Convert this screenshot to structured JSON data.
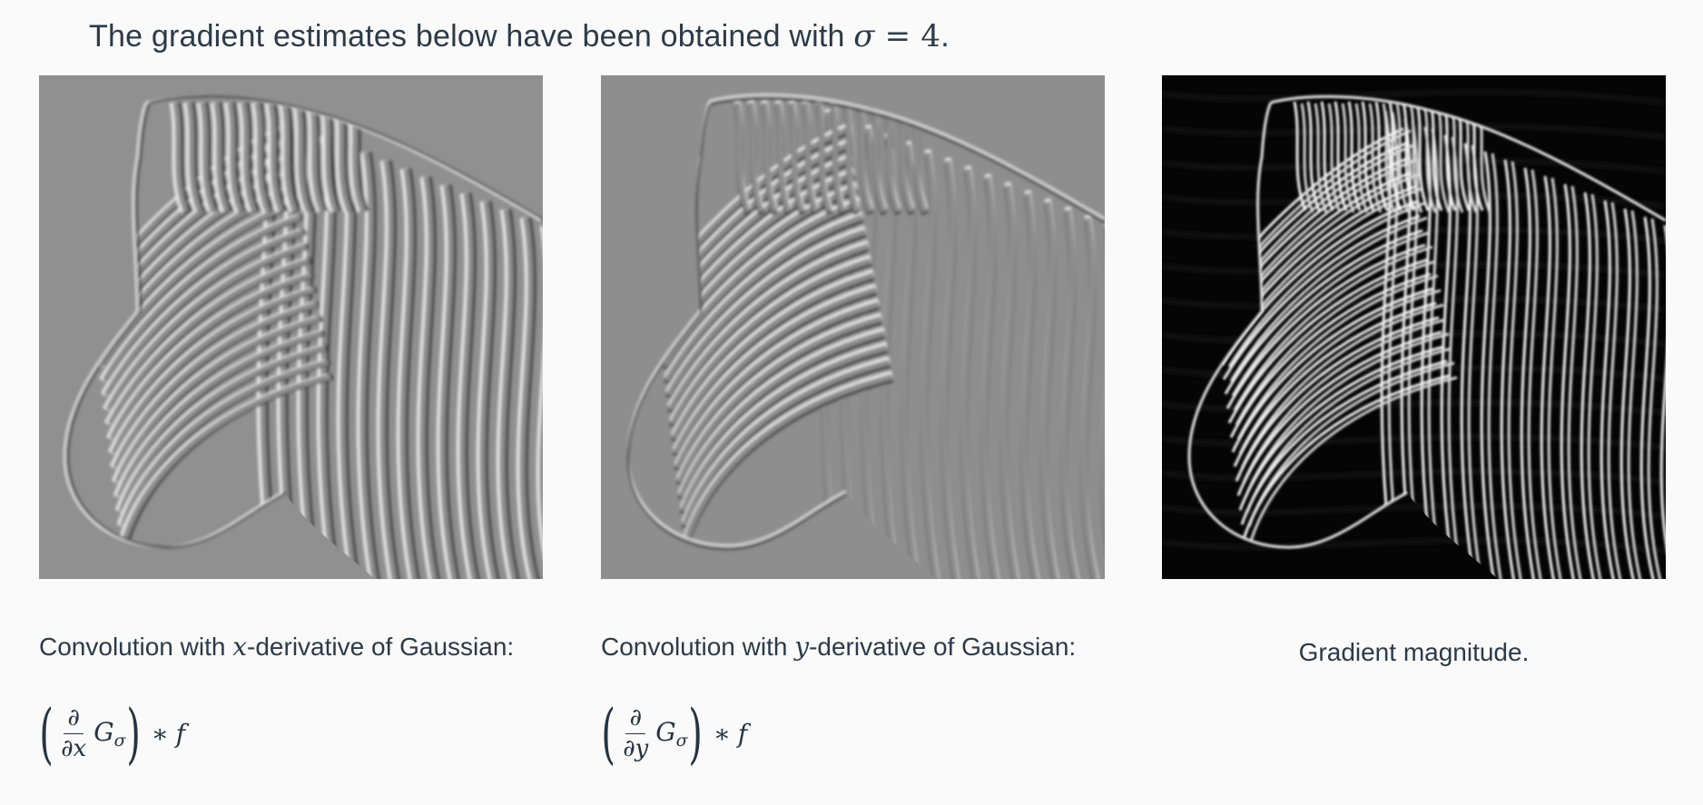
{
  "intro": {
    "prefix": "The gradient estimates below have been obtained with ",
    "sigma_symbol": "σ",
    "equals": " = ",
    "value": "4",
    "suffix": "."
  },
  "panels": [
    {
      "id": "x-derivative",
      "caption_prefix": "Convolution with ",
      "caption_var": "x",
      "caption_suffix": "-derivative of Gaussian:",
      "formula": {
        "numerator": "∂",
        "denominator": "∂x",
        "kernel": "G",
        "kernel_sub": "σ",
        "operator": "∗",
        "operand": "f"
      }
    },
    {
      "id": "y-derivative",
      "caption_prefix": "Convolution with ",
      "caption_var": "y",
      "caption_suffix": "-derivative of Gaussian:",
      "formula": {
        "numerator": "∂",
        "denominator": "∂y",
        "kernel": "G",
        "kernel_sub": "σ",
        "operator": "∗",
        "operand": "f"
      }
    },
    {
      "id": "magnitude",
      "caption": "Gradient magnitude."
    }
  ],
  "colors": {
    "background": "#fafafa",
    "text": "#2c3a48",
    "relief_gray": "#8c8c8c",
    "magnitude_bg": "#050505"
  },
  "images": {
    "x_derivative": "zebra-x-gradient-image",
    "y_derivative": "zebra-y-gradient-image",
    "magnitude": "zebra-gradient-magnitude-image"
  }
}
